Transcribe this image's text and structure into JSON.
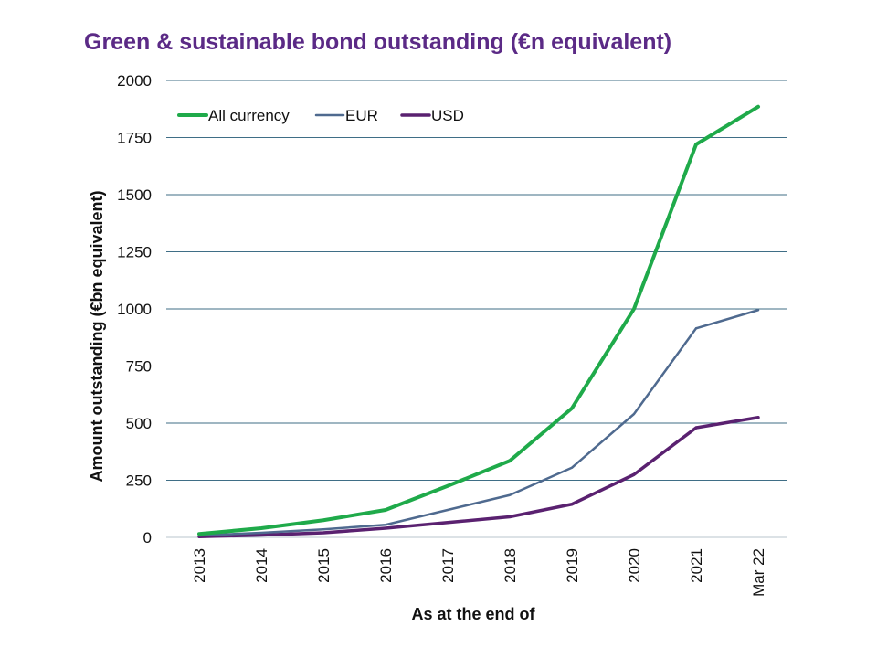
{
  "chart_data": {
    "type": "line",
    "title": "Green & sustainable bond outstanding (€n equivalent)",
    "xlabel": "As at the end of",
    "ylabel": "Amount outstanding (€bn equivalent)",
    "categories": [
      "2013",
      "2014",
      "2015",
      "2016",
      "2017",
      "2018",
      "2019",
      "2020",
      "2021",
      "Mar 22"
    ],
    "ylim": [
      0,
      2000
    ],
    "yticks": [
      0,
      250,
      500,
      750,
      1000,
      1250,
      1500,
      1750,
      2000
    ],
    "grid": "horizontal",
    "legend_position": "top-left",
    "series": [
      {
        "name": "All currency",
        "color": "#1faa4a",
        "values": [
          15,
          40,
          75,
          120,
          225,
          335,
          565,
          1000,
          1720,
          1885
        ]
      },
      {
        "name": "EUR",
        "color": "#4f6a8f",
        "values": [
          8,
          20,
          35,
          55,
          120,
          185,
          305,
          540,
          915,
          995
        ]
      },
      {
        "name": "USD",
        "color": "#5a2170",
        "values": [
          3,
          10,
          20,
          40,
          65,
          90,
          145,
          275,
          480,
          525
        ]
      }
    ]
  }
}
